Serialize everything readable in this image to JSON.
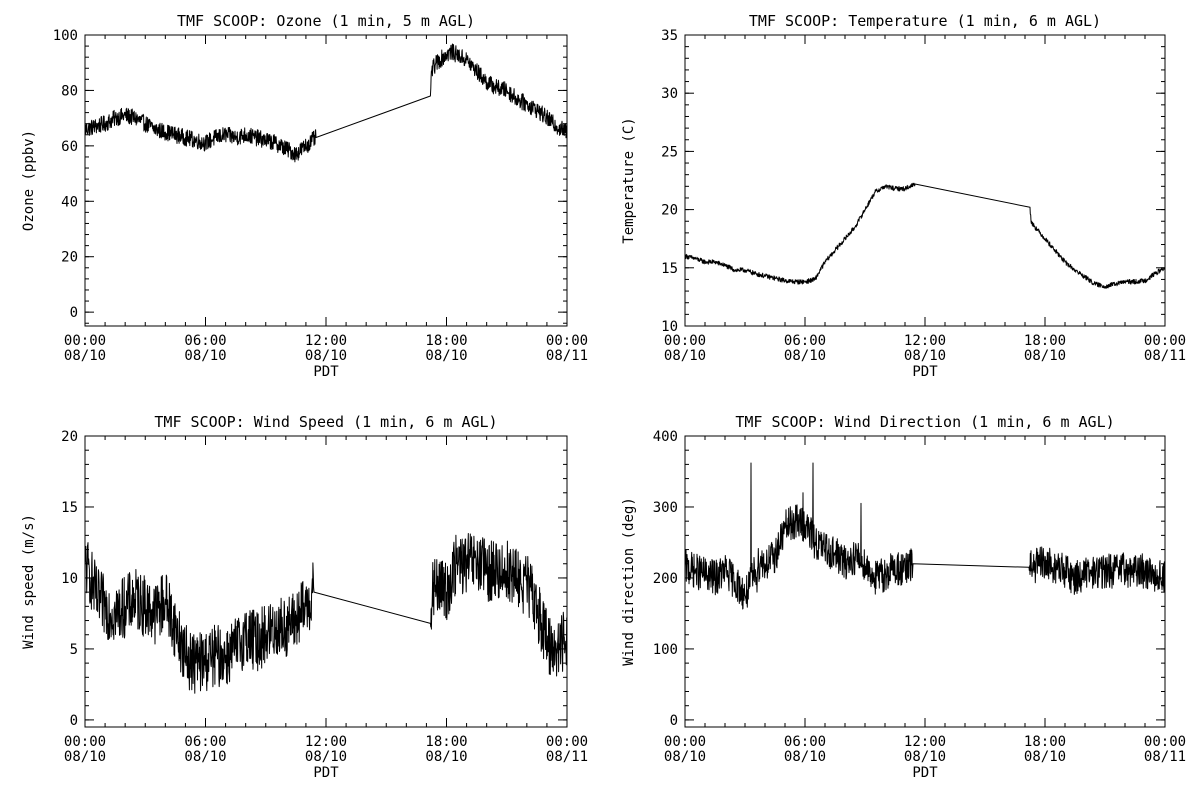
{
  "chart_data": [
    {
      "type": "line",
      "title": "TMF SCOOP: Ozone (1 min, 5 m AGL)",
      "xlabel": "PDT",
      "ylabel": "Ozone (ppbv)",
      "xlim": [
        0,
        24
      ],
      "ylim": [
        -5,
        100
      ],
      "yticks": [
        0,
        20,
        40,
        60,
        80,
        100
      ],
      "xticks": [
        {
          "x": 0,
          "time": "00:00",
          "date": "08/10"
        },
        {
          "x": 6,
          "time": "06:00",
          "date": "08/10"
        },
        {
          "x": 12,
          "time": "12:00",
          "date": "08/10"
        },
        {
          "x": 18,
          "time": "18:00",
          "date": "08/10"
        },
        {
          "x": 24,
          "time": "00:00",
          "date": "08/11"
        }
      ],
      "grid": false,
      "series": [
        {
          "x": [
            0,
            0.5,
            1,
            1.5,
            2,
            2.5,
            3,
            3.5,
            4,
            4.5,
            5,
            5.5,
            6,
            6.5,
            7,
            7.5,
            8,
            8.5,
            9,
            9.5,
            10,
            10.5,
            11,
            11.5,
            17.2,
            17.25,
            17.5,
            18,
            18.25,
            18.5,
            19,
            19.5,
            20,
            20.5,
            21,
            21.5,
            22,
            22.5,
            23,
            23.5,
            24
          ],
          "y": [
            66,
            67,
            68,
            70,
            71,
            70,
            68,
            66,
            65,
            64,
            63,
            62,
            61,
            63,
            64,
            63,
            64,
            63,
            62,
            61,
            59,
            57,
            60,
            63,
            78,
            87,
            90,
            93,
            94,
            93,
            91,
            87,
            83,
            81,
            80,
            77,
            75,
            73,
            70,
            67,
            65
          ],
          "noise": 3.0
        }
      ]
    },
    {
      "type": "line",
      "title": "TMF SCOOP: Temperature (1 min, 6 m AGL)",
      "xlabel": "PDT",
      "ylabel": "Temperature (C)",
      "xlim": [
        0,
        24
      ],
      "ylim": [
        10,
        35
      ],
      "yticks": [
        10,
        15,
        20,
        25,
        30,
        35
      ],
      "xticks": [
        {
          "x": 0,
          "time": "00:00",
          "date": "08/10"
        },
        {
          "x": 6,
          "time": "06:00",
          "date": "08/10"
        },
        {
          "x": 12,
          "time": "12:00",
          "date": "08/10"
        },
        {
          "x": 18,
          "time": "18:00",
          "date": "08/10"
        },
        {
          "x": 24,
          "time": "00:00",
          "date": "08/11"
        }
      ],
      "grid": false,
      "series": [
        {
          "x": [
            0,
            0.5,
            1,
            1.5,
            2,
            2.5,
            3,
            3.5,
            4,
            4.5,
            5,
            5.5,
            6,
            6.5,
            7,
            7.5,
            8,
            8.5,
            9,
            9.5,
            10,
            10.5,
            11,
            11.5,
            17.25,
            17.3,
            17.5,
            18,
            18.5,
            19,
            19.5,
            20,
            20.5,
            21,
            21.5,
            22,
            22.5,
            23,
            23.5,
            24
          ],
          "y": [
            16,
            15.8,
            15.5,
            15.5,
            15.2,
            14.8,
            14.8,
            14.5,
            14.3,
            14.1,
            13.9,
            13.8,
            13.8,
            14.0,
            15.5,
            16.5,
            17.5,
            18.5,
            20.0,
            21.5,
            22.0,
            21.8,
            21.8,
            22.2,
            20.2,
            19.0,
            18.5,
            17.5,
            16.5,
            15.5,
            14.8,
            14.2,
            13.6,
            13.4,
            13.6,
            13.8,
            13.8,
            13.9,
            14.5,
            15.0
          ],
          "noise": 0.2
        }
      ]
    },
    {
      "type": "line",
      "title": "TMF SCOOP: Wind Speed (1 min, 6 m AGL)",
      "xlabel": "PDT",
      "ylabel": "Wind speed (m/s)",
      "xlim": [
        0,
        24
      ],
      "ylim": [
        -0.5,
        20
      ],
      "yticks": [
        0,
        5,
        10,
        15,
        20
      ],
      "xticks": [
        {
          "x": 0,
          "time": "00:00",
          "date": "08/10"
        },
        {
          "x": 6,
          "time": "06:00",
          "date": "08/10"
        },
        {
          "x": 12,
          "time": "12:00",
          "date": "08/10"
        },
        {
          "x": 18,
          "time": "18:00",
          "date": "08/10"
        },
        {
          "x": 24,
          "time": "00:00",
          "date": "08/11"
        }
      ],
      "grid": false,
      "series": [
        {
          "x": [
            0,
            0.3,
            0.6,
            1,
            1.5,
            2,
            2.5,
            3,
            3.5,
            4,
            4.5,
            5,
            5.5,
            6,
            6.5,
            7,
            7.5,
            8,
            8.5,
            9,
            9.5,
            10,
            10.5,
            11,
            11.4,
            17.2,
            17.3,
            17.5,
            18,
            18.5,
            19,
            19.5,
            20,
            20.5,
            21,
            21.5,
            22,
            22.5,
            23,
            23.5,
            24
          ],
          "y": [
            11,
            10,
            8.5,
            8,
            7.5,
            8,
            8.5,
            8,
            7.5,
            8.5,
            6.5,
            4.5,
            4,
            4.2,
            4.5,
            4.5,
            5,
            6,
            5.5,
            6,
            6.5,
            6.5,
            7,
            8,
            9,
            6.8,
            9,
            9.5,
            9,
            11,
            11,
            11,
            10.5,
            10.5,
            10.5,
            10,
            9.5,
            8,
            5.5,
            5,
            6
          ],
          "noise": 2.2
        }
      ]
    },
    {
      "type": "line",
      "title": "TMF SCOOP: Wind Direction (1 min, 6 m AGL)",
      "xlabel": "PDT",
      "ylabel": "Wind direction (deg)",
      "xlim": [
        0,
        24
      ],
      "ylim": [
        -10,
        400
      ],
      "yticks": [
        0,
        100,
        200,
        300,
        400
      ],
      "xticks": [
        {
          "x": 0,
          "time": "00:00",
          "date": "08/10"
        },
        {
          "x": 6,
          "time": "06:00",
          "date": "08/10"
        },
        {
          "x": 12,
          "time": "12:00",
          "date": "08/10"
        },
        {
          "x": 18,
          "time": "18:00",
          "date": "08/10"
        },
        {
          "x": 24,
          "time": "00:00",
          "date": "08/11"
        }
      ],
      "grid": false,
      "series": [
        {
          "x": [
            0,
            0.5,
            1,
            1.5,
            2,
            2.5,
            3,
            3.2,
            3.5,
            3.8,
            4,
            4.5,
            5,
            5.5,
            6,
            6.5,
            7,
            7.5,
            8,
            8.5,
            9,
            9.5,
            10,
            10.5,
            11,
            11.4,
            17.2,
            17.5,
            18,
            18.5,
            19,
            19.5,
            20,
            20.5,
            21,
            21.5,
            22,
            22.5,
            23,
            23.5,
            24
          ],
          "y": [
            215,
            210,
            205,
            200,
            210,
            195,
            175,
            185,
            210,
            225,
            220,
            230,
            270,
            280,
            275,
            250,
            240,
            235,
            220,
            230,
            220,
            200,
            205,
            215,
            210,
            220,
            215,
            218,
            220,
            215,
            210,
            200,
            205,
            208,
            210,
            210,
            212,
            210,
            210,
            205,
            200
          ],
          "noise": 25,
          "spikes": [
            {
              "x": 3.3,
              "y": 362
            },
            {
              "x": 6.4,
              "y": 362
            },
            {
              "x": 5.9,
              "y": 320
            },
            {
              "x": 8.8,
              "y": 305
            },
            {
              "x": 3.6,
              "y": 180
            }
          ]
        }
      ]
    }
  ]
}
